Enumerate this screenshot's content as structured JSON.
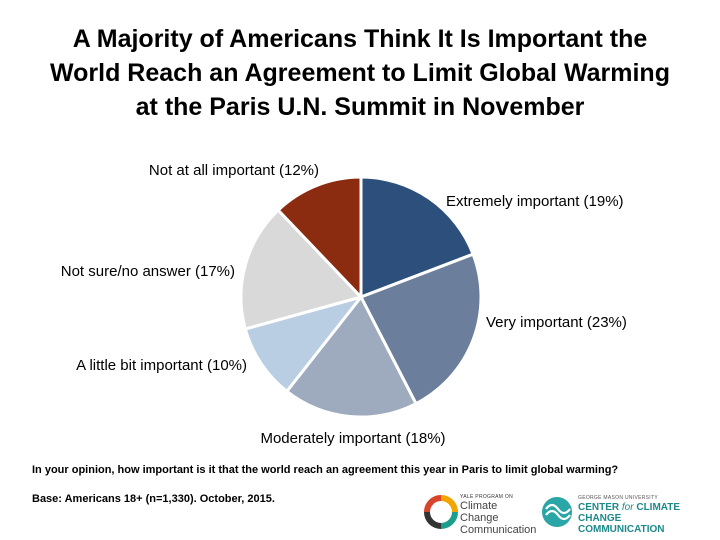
{
  "title_lines": [
    "A Majority of Americans Think It Is Important the",
    "World Reach an Agreement to Limit Global Warming",
    "at the Paris U.N. Summit in November"
  ],
  "question": "In your opinion, how important is it that the world reach an agreement this year in Paris to limit global warming?",
  "base": "Base: Americans 18+ (n=1,330). October, 2015.",
  "logos": {
    "ycc_small": "YALE PROGRAM ON",
    "ycc_line1": "Climate Change",
    "ycc_line2": "Communication",
    "gmu_small": "GEORGE MASON UNIVERSITY",
    "gmu_line1_a": "CENTER ",
    "gmu_line1_b": "for",
    "gmu_line1_c": " CLIMATE CHANGE",
    "gmu_line2": "COMMUNICATION"
  },
  "chart_data": {
    "type": "pie",
    "start": "12 o'clock, clockwise",
    "slices": [
      {
        "label": "Extremely important (19%)",
        "value": 19,
        "color": "#2d4f7c"
      },
      {
        "label": "Very important (23%)",
        "value": 23,
        "color": "#6b7f9c"
      },
      {
        "label": "Moderately important (18%)",
        "value": 18,
        "color": "#9eaabd"
      },
      {
        "label": "A little bit important (10%)",
        "value": 10,
        "color": "#b9cde3"
      },
      {
        "label": "Not sure/no answer (17%)",
        "value": 17,
        "color": "#d9d9d9"
      },
      {
        "label": "Not at all important (12%)",
        "value": 12,
        "color": "#8b2b10"
      }
    ]
  }
}
